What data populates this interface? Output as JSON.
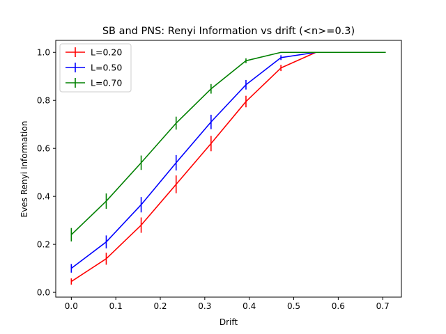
{
  "chart_data": {
    "type": "line",
    "title": "SB and PNS: Renyi Information vs drift (<n>=0.3)",
    "xlabel": "Drift",
    "ylabel": "Eves Renyi Information",
    "xlim": [
      -0.035,
      0.742
    ],
    "ylim": [
      -0.02,
      1.05
    ],
    "xticks": [
      0.0,
      0.1,
      0.2,
      0.3,
      0.4,
      0.5,
      0.6,
      0.7
    ],
    "xtick_labels": [
      "0.0",
      "0.1",
      "0.2",
      "0.3",
      "0.4",
      "0.5",
      "0.6",
      "0.7"
    ],
    "yticks": [
      0.0,
      0.2,
      0.4,
      0.6,
      0.8,
      1.0
    ],
    "ytick_labels": [
      "0.0",
      "0.2",
      "0.4",
      "0.6",
      "0.8",
      "1.0"
    ],
    "legend_position": "top-left",
    "grid": false,
    "x": [
      0.0,
      0.0785,
      0.157,
      0.2356,
      0.3141,
      0.3926,
      0.4712,
      0.5497,
      0.6283,
      0.7068
    ],
    "series": [
      {
        "name": "L=0.20",
        "color": "#ff0000",
        "values": [
          0.045,
          0.14,
          0.28,
          0.45,
          0.62,
          0.795,
          0.935,
          1.0,
          1.0,
          1.0
        ],
        "errors": [
          0.013,
          0.025,
          0.032,
          0.037,
          0.032,
          0.024,
          0.013,
          0.0,
          0.0,
          0.0
        ]
      },
      {
        "name": "L=0.50",
        "color": "#0000ff",
        "values": [
          0.1,
          0.21,
          0.365,
          0.54,
          0.71,
          0.865,
          0.978,
          1.0,
          1.0,
          1.0
        ],
        "errors": [
          0.018,
          0.027,
          0.032,
          0.032,
          0.03,
          0.02,
          0.01,
          0.0,
          0.0,
          0.0
        ]
      },
      {
        "name": "L=0.70",
        "color": "#008000",
        "values": [
          0.24,
          0.38,
          0.54,
          0.705,
          0.848,
          0.965,
          1.0,
          1.0,
          1.0,
          1.0
        ],
        "errors": [
          0.028,
          0.032,
          0.03,
          0.027,
          0.02,
          0.01,
          0.0,
          0.0,
          0.0,
          0.0
        ]
      }
    ]
  }
}
